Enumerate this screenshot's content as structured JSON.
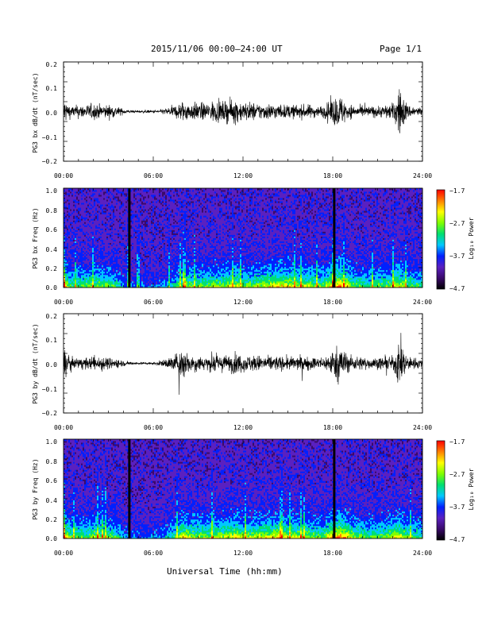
{
  "header": {
    "title": "2015/11/06  00:00–24:00 UT",
    "page": "Page 1/1"
  },
  "colors": {
    "background": "#ffffff",
    "trace": "#000000",
    "colorbar_stops": [
      "#000000",
      "#3a0a6a",
      "#5a20c0",
      "#0020ff",
      "#00c8ff",
      "#00e070",
      "#80ff00",
      "#ffff00",
      "#ff8000",
      "#ff0000"
    ]
  },
  "chart_data": [
    {
      "type": "line",
      "ylabel": "PG3 bx dB/dt (nT/sec)",
      "ylim": [
        -0.2,
        0.2
      ],
      "yticks": [
        "0.2",
        "0.1",
        "0.0",
        "−0.1",
        "−0.2"
      ],
      "xlim": [
        0,
        24
      ],
      "xticks": [
        "00:00",
        "06:00",
        "12:00",
        "18:00",
        "24:00"
      ],
      "series": [
        {
          "x": [
            0,
            0.5,
            1,
            1.5,
            2,
            2.5,
            3,
            3.5,
            4,
            4.5,
            5,
            5.5,
            6,
            6.5,
            7,
            7.5,
            8,
            8.5,
            9,
            9.5,
            10,
            10.5,
            11,
            11.5,
            12,
            12.5,
            13,
            13.5,
            14,
            14.5,
            15,
            15.5,
            16,
            16.5,
            17,
            17.5,
            18,
            18.5,
            19,
            19.5,
            20,
            20.5,
            21,
            21.5,
            22,
            22.5,
            23,
            23.5,
            24
          ],
          "amplitude": [
            0.1,
            0.04,
            0.05,
            0.05,
            0.06,
            0.05,
            0.05,
            0.04,
            0.02,
            0.01,
            0.01,
            0.01,
            0.01,
            0.015,
            0.03,
            0.05,
            0.08,
            0.06,
            0.07,
            0.06,
            0.08,
            0.07,
            0.08,
            0.09,
            0.07,
            0.07,
            0.06,
            0.06,
            0.06,
            0.05,
            0.05,
            0.05,
            0.05,
            0.05,
            0.04,
            0.05,
            0.1,
            0.12,
            0.06,
            0.04,
            0.04,
            0.04,
            0.04,
            0.05,
            0.06,
            0.18,
            0.05,
            0.04,
            0.03
          ]
        }
      ]
    },
    {
      "type": "heatmap",
      "ylabel": "PG3 bx Freq (Hz)",
      "ylim": [
        0.0,
        1.0
      ],
      "yticks": [
        "1.0",
        "0.8",
        "0.6",
        "0.4",
        "0.2",
        "0.0"
      ],
      "xlim": [
        0,
        24
      ],
      "xticks": [
        "00:00",
        "06:00",
        "12:00",
        "18:00",
        "24:00"
      ],
      "colorbar": {
        "label": "Log₁₀ Power",
        "min": -4.7,
        "max": -1.7,
        "ticks": [
          "−1.7",
          "−2.7",
          "−3.7",
          "−4.7"
        ]
      },
      "data_gaps_hours": [
        4.4,
        18.1
      ],
      "activity": [
        0.9,
        0.5,
        0.6,
        0.6,
        0.7,
        0.6,
        0.6,
        0.5,
        0.3,
        0.2,
        0.2,
        0.2,
        0.2,
        0.2,
        0.3,
        0.45,
        0.7,
        0.6,
        0.65,
        0.6,
        0.7,
        0.65,
        0.7,
        0.75,
        0.65,
        0.65,
        0.7,
        0.75,
        0.8,
        0.85,
        0.8,
        0.75,
        0.7,
        0.7,
        0.6,
        0.65,
        0.9,
        1.0,
        0.8,
        0.6,
        0.55,
        0.55,
        0.6,
        0.6,
        0.7,
        0.8,
        0.6,
        0.55,
        0.5
      ]
    },
    {
      "type": "line",
      "ylabel": "PG3 by dB/dt (nT/sec)",
      "ylim": [
        -0.2,
        0.2
      ],
      "yticks": [
        "0.2",
        "0.1",
        "0.0",
        "−0.1",
        "−0.2"
      ],
      "xlim": [
        0,
        24
      ],
      "xticks": [
        "00:00",
        "06:00",
        "12:00",
        "18:00",
        "24:00"
      ],
      "series": [
        {
          "x": [
            0,
            0.5,
            1,
            1.5,
            2,
            2.5,
            3,
            3.5,
            4,
            4.5,
            5,
            5.5,
            6,
            6.5,
            7,
            7.5,
            8,
            8.5,
            9,
            9.5,
            10,
            10.5,
            11,
            11.5,
            12,
            12.5,
            13,
            13.5,
            14,
            14.5,
            15,
            15.5,
            16,
            16.5,
            17,
            17.5,
            18,
            18.5,
            19,
            19.5,
            20,
            20.5,
            21,
            21.5,
            22,
            22.5,
            23,
            23.5,
            24
          ],
          "amplitude": [
            0.12,
            0.04,
            0.04,
            0.04,
            0.05,
            0.06,
            0.04,
            0.04,
            0.02,
            0.01,
            0.01,
            0.01,
            0.01,
            0.02,
            0.04,
            0.07,
            0.12,
            0.06,
            0.06,
            0.05,
            0.07,
            0.06,
            0.06,
            0.08,
            0.06,
            0.06,
            0.06,
            0.05,
            0.06,
            0.05,
            0.05,
            0.05,
            0.05,
            0.05,
            0.04,
            0.05,
            0.1,
            0.14,
            0.07,
            0.05,
            0.05,
            0.04,
            0.04,
            0.05,
            0.05,
            0.18,
            0.05,
            0.04,
            0.03
          ]
        }
      ]
    },
    {
      "type": "heatmap",
      "ylabel": "PG3 by Freq (Hz)",
      "ylim": [
        0.0,
        1.0
      ],
      "yticks": [
        "1.0",
        "0.8",
        "0.6",
        "0.4",
        "0.2",
        "0.0"
      ],
      "xlim": [
        0,
        24
      ],
      "xticks": [
        "00:00",
        "06:00",
        "12:00",
        "18:00",
        "24:00"
      ],
      "colorbar": {
        "label": "Log₁₀ Power",
        "min": -4.7,
        "max": -1.7,
        "ticks": [
          "−1.7",
          "−2.7",
          "−3.7",
          "−4.7"
        ]
      },
      "data_gaps_hours": [
        4.4,
        18.1
      ],
      "activity": [
        0.9,
        0.55,
        0.6,
        0.6,
        0.7,
        0.65,
        0.6,
        0.55,
        0.3,
        0.2,
        0.2,
        0.2,
        0.2,
        0.25,
        0.4,
        0.55,
        0.85,
        0.7,
        0.7,
        0.65,
        0.75,
        0.7,
        0.7,
        0.8,
        0.7,
        0.7,
        0.75,
        0.75,
        0.8,
        0.8,
        0.75,
        0.75,
        0.7,
        0.7,
        0.6,
        0.65,
        0.95,
        1.0,
        0.85,
        0.65,
        0.6,
        0.55,
        0.6,
        0.65,
        0.7,
        0.85,
        0.6,
        0.55,
        0.5
      ]
    }
  ],
  "xaxis_title": "Universal Time (hh:mm)"
}
